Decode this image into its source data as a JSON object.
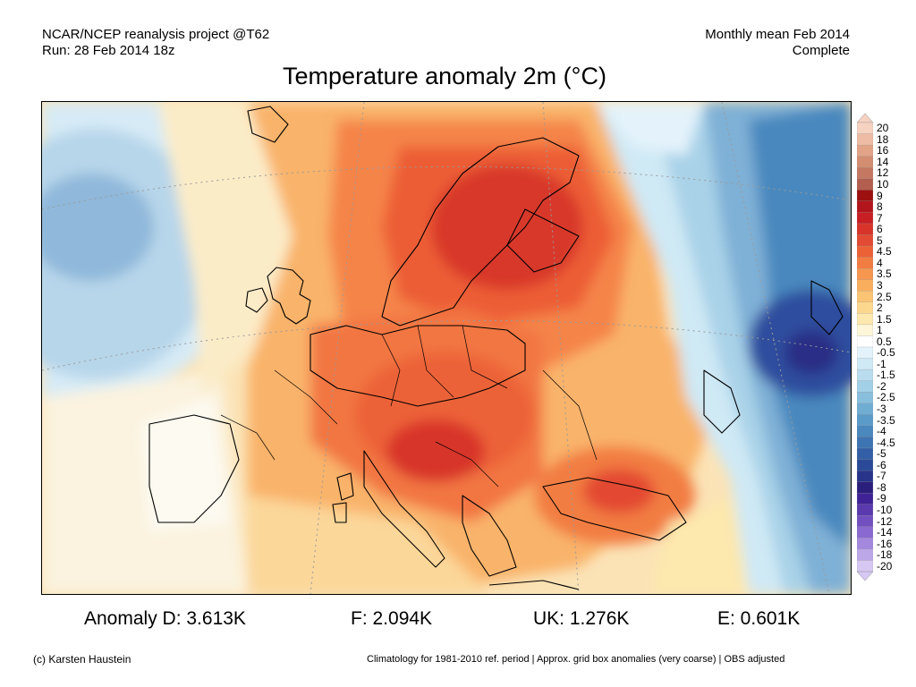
{
  "header": {
    "left_line1": "NCAR/NCEP reanalysis project @T62",
    "left_line2": "Run: 28 Feb 2014 18z",
    "right_line1": "Monthly mean Feb 2014",
    "right_line2": "Complete"
  },
  "title": "Temperature anomaly 2m (°C)",
  "colorbar": {
    "labels": [
      "20",
      "18",
      "16",
      "14",
      "12",
      "10",
      "9",
      "8",
      "7",
      "6",
      "5",
      "4.5",
      "4",
      "3.5",
      "3",
      "2.5",
      "2",
      "1.5",
      "1",
      "0.5",
      "-0.5",
      "-1",
      "-1.5",
      "-2",
      "-2.5",
      "-3",
      "-3.5",
      "-4",
      "-4.5",
      "-5",
      "-6",
      "-7",
      "-8",
      "-9",
      "-10",
      "-12",
      "-14",
      "-16",
      "-18",
      "-20"
    ],
    "colors": [
      "#f6d2c0",
      "#eebba4",
      "#e2a386",
      "#d38d70",
      "#c47861",
      "#b25f4f",
      "#9d1010",
      "#b2161c",
      "#c81f24",
      "#d8342a",
      "#e34a33",
      "#ec6237",
      "#f27d42",
      "#f6964f",
      "#f9ae5e",
      "#fbc474",
      "#fcd88f",
      "#fde8ad",
      "#fef6d8",
      "#ffffff",
      "#e4f3fb",
      "#cfe9f5",
      "#b9ddef",
      "#a2d0e7",
      "#89bfdd",
      "#70add3",
      "#5b9bc9",
      "#4a88be",
      "#3e74b2",
      "#335fa6",
      "#2a4a98",
      "#27348a",
      "#2b1f7c",
      "#3f2396",
      "#5a3aad",
      "#7250c0",
      "#8a6ad0",
      "#a388de",
      "#bca7e9",
      "#d6c8f3"
    ]
  },
  "stats": {
    "d": "Anomaly D: 3.613K",
    "f": "F: 2.094K",
    "uk": "UK: 1.276K",
    "e": "E: 0.601K"
  },
  "footer": {
    "copyright": "(c) Karsten Haustein",
    "note": "Climatology for 1981-2010 ref. period | Approx. grid box anomalies (very coarse) | OBS adjusted"
  }
}
